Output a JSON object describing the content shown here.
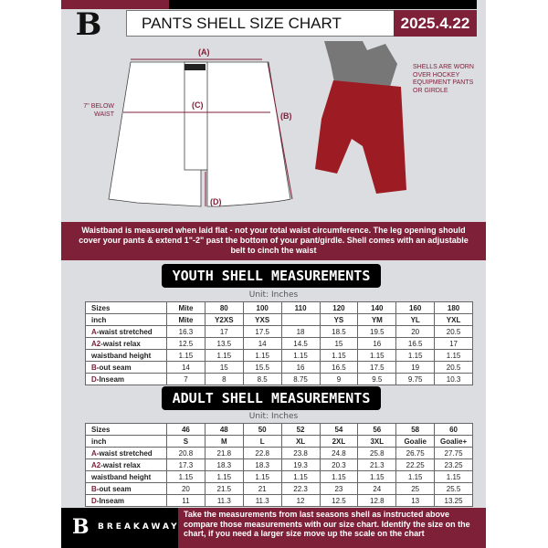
{
  "header": {
    "title": "PANTS SHELL SIZE CHART",
    "date": "2025.4.22",
    "logo_letter": "B"
  },
  "diagram": {
    "label_a": "(A)",
    "label_b": "(B)",
    "label_c": "(C)",
    "label_d": "(D)",
    "c_note": "7\" BELOW WAIST",
    "shell_note": "SHELLS ARE WORN OVER HOCKEY EQUIPMENT PANTS OR GIRDLE"
  },
  "colors": {
    "brand": "#7f2039",
    "background": "#dcdde1"
  },
  "notice": "Waistband is measured when laid flat - not your total waist circumference. The leg opening should cover your pants & extend 1\"-2\" past the bottom of your pant/girdle. Shell comes with an adjustable belt to cinch the waist",
  "youth": {
    "title": "YOUTH SHELL MEASUREMENTS",
    "unit": "Unit: Inches",
    "rows": [
      {
        "pre": "",
        "label": "Sizes",
        "cells": [
          "Mite",
          "80",
          "100",
          "110",
          "120",
          "140",
          "160",
          "180"
        ]
      },
      {
        "pre": "",
        "label": "inch",
        "cells": [
          "Mite",
          "Y2XS",
          "YXS",
          "",
          "YS",
          "YM",
          "YL",
          "YXL"
        ]
      },
      {
        "pre": "A",
        "label": "-waist stretched",
        "cells": [
          "16.3",
          "17",
          "17.5",
          "18",
          "18.5",
          "19.5",
          "20",
          "20.5"
        ]
      },
      {
        "pre": "A2",
        "label": "-waist relax",
        "cells": [
          "12.5",
          "13.5",
          "14",
          "14.5",
          "15",
          "16",
          "16.5",
          "17"
        ]
      },
      {
        "pre": "",
        "label": "waistband height",
        "cells": [
          "1.15",
          "1.15",
          "1.15",
          "1.15",
          "1.15",
          "1.15",
          "1.15",
          "1.15"
        ]
      },
      {
        "pre": "B",
        "label": "-out seam",
        "cells": [
          "14",
          "15",
          "15.5",
          "16",
          "16.5",
          "17.5",
          "19",
          "20.5"
        ]
      },
      {
        "pre": "D",
        "label": "-Inseam",
        "cells": [
          "7",
          "8",
          "8.5",
          "8.75",
          "9",
          "9.5",
          "9.75",
          "10.3"
        ]
      }
    ]
  },
  "adult": {
    "title": "ADULT SHELL MEASUREMENTS",
    "unit": "Unit: Inches",
    "rows": [
      {
        "pre": "",
        "label": "Sizes",
        "cells": [
          "46",
          "48",
          "50",
          "52",
          "54",
          "56",
          "58",
          "60"
        ]
      },
      {
        "pre": "",
        "label": "inch",
        "cells": [
          "S",
          "M",
          "L",
          "XL",
          "2XL",
          "3XL",
          "Goalie",
          "Goalie+"
        ]
      },
      {
        "pre": "A",
        "label": "-waist stretched",
        "cells": [
          "20.8",
          "21.8",
          "22.8",
          "23.8",
          "24.8",
          "25.8",
          "26.75",
          "27.75"
        ]
      },
      {
        "pre": "A2",
        "label": "-waist relax",
        "cells": [
          "17.3",
          "18.3",
          "18.3",
          "19.3",
          "20.3",
          "21.3",
          "22.25",
          "23.25"
        ]
      },
      {
        "pre": "",
        "label": "waistband height",
        "cells": [
          "1.15",
          "1.15",
          "1.15",
          "1.15",
          "1.15",
          "1.15",
          "1.15",
          "1.15"
        ]
      },
      {
        "pre": "B",
        "label": "-out seam",
        "cells": [
          "20",
          "21.5",
          "21",
          "22.3",
          "23",
          "24",
          "25",
          "25.5"
        ]
      },
      {
        "pre": "D",
        "label": "-Inseam",
        "cells": [
          "11",
          "11.3",
          "11.3",
          "12",
          "12.5",
          "12.8",
          "13",
          "13.25"
        ]
      }
    ]
  },
  "footer": {
    "brand": "BREAKAWAY",
    "text": "Take the measurements from last seasons shell as instructed above compare those measurements  with our size chart. Identify the size on the chart, if you need a larger size move up the scale on the chart"
  }
}
